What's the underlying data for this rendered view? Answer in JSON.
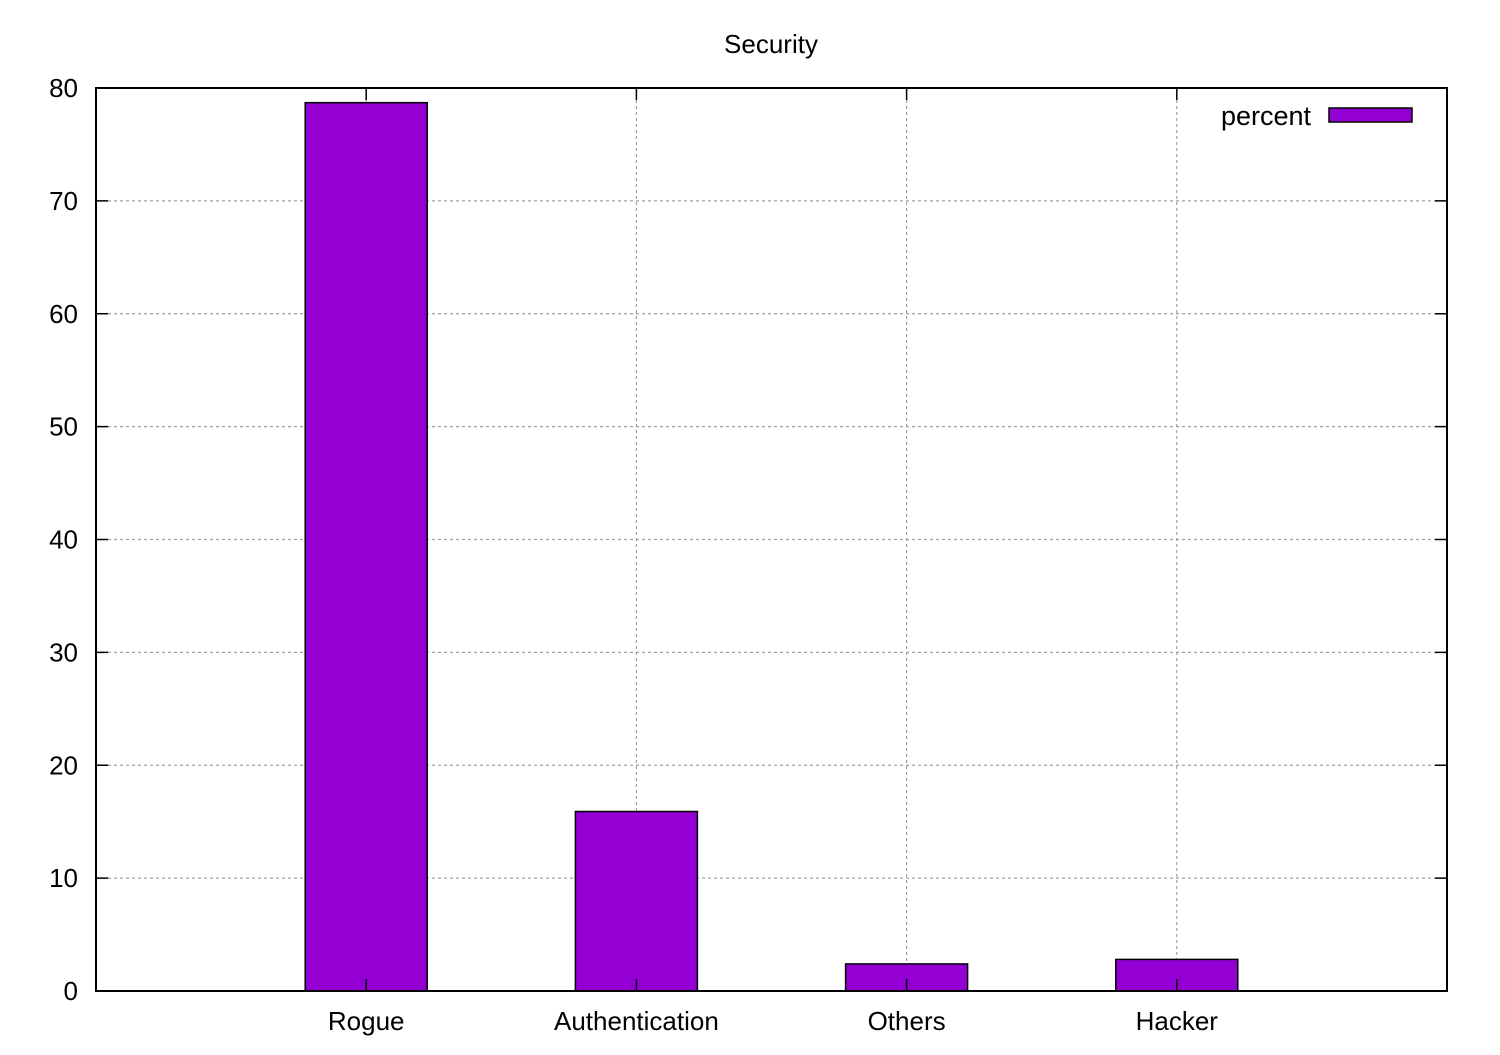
{
  "chart_data": {
    "type": "bar",
    "title": "Security",
    "xlabel": "",
    "ylabel": "",
    "categories": [
      "Rogue",
      "Authentication",
      "Others",
      "Hacker"
    ],
    "series": [
      {
        "name": "percent",
        "values": [
          78.7,
          15.9,
          2.4,
          2.8
        ]
      }
    ],
    "ylim": [
      0,
      80
    ],
    "yticks": [
      0,
      10,
      20,
      30,
      40,
      50,
      60,
      70,
      80
    ],
    "grid": true,
    "legend_position": "top-right",
    "colors": {
      "bar": "#9400d3",
      "grid": "#a0a0a0",
      "axis": "#000000"
    }
  }
}
